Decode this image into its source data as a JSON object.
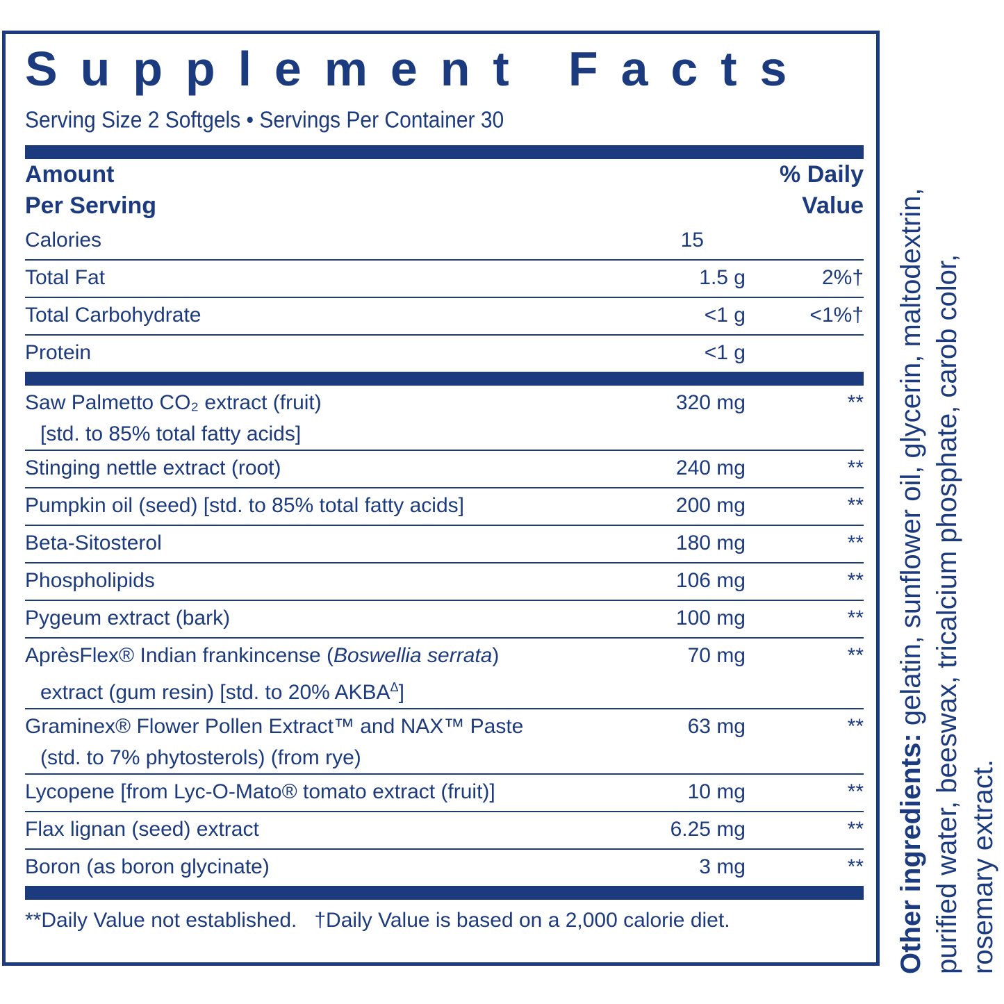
{
  "title": "Supplement Facts",
  "serving": "Serving Size 2 Softgels • Servings Per Container 30",
  "header": {
    "amount": "Amount",
    "per_serving": "Per Serving",
    "daily": "% Daily",
    "value": "Value"
  },
  "sections": [
    {
      "rows": [
        {
          "name": [
            {
              "text": "Calories"
            }
          ],
          "amount": "15"
        },
        {
          "name": [
            {
              "text": "Total Fat"
            }
          ],
          "amount": "1.5 g",
          "dv": "2%†"
        },
        {
          "name": [
            {
              "text": "Total Carbohydrate"
            }
          ],
          "amount": "<1 g",
          "dv": "<1%†"
        },
        {
          "name": [
            {
              "text": "Protein"
            }
          ],
          "amount": "<1 g"
        }
      ]
    },
    {
      "rows": [
        {
          "name": [
            {
              "text": "Saw Palmetto CO₂ extract (fruit)"
            }
          ],
          "detail": [
            {
              "text": "[std. to 85% total fatty acids]"
            }
          ],
          "amount": "320 mg",
          "dv": "**"
        },
        {
          "name": [
            {
              "text": "Stinging nettle extract (root)"
            }
          ],
          "amount": "240 mg",
          "dv": "**"
        },
        {
          "name": [
            {
              "text": "Pumpkin oil (seed) [std. to 85% total fatty acids]"
            }
          ],
          "amount": "200 mg",
          "dv": "**"
        },
        {
          "name": [
            {
              "text": "Beta-Sitosterol"
            }
          ],
          "amount": "180 mg",
          "dv": "**"
        },
        {
          "name": [
            {
              "text": "Phospholipids"
            }
          ],
          "amount": "106 mg",
          "dv": "**"
        },
        {
          "name": [
            {
              "text": "Pygeum extract (bark)"
            }
          ],
          "amount": "100 mg",
          "dv": "**"
        },
        {
          "name": [
            {
              "text": "AprèsFlex® Indian frankincense ("
            },
            {
              "text": "Boswellia serrata",
              "italic": true
            },
            {
              "text": ")"
            }
          ],
          "detail": [
            {
              "text": "extract (gum resin) [std. to 20% AKBA"
            },
            {
              "text": "Δ",
              "sup": true
            },
            {
              "text": "]"
            }
          ],
          "amount": "70 mg",
          "dv": "**"
        },
        {
          "name": [
            {
              "text": "Graminex® Flower Pollen Extract™ and NAX™ Paste"
            }
          ],
          "detail": [
            {
              "text": "(std. to 7% phytosterols) (from rye)"
            }
          ],
          "amount": "63 mg",
          "dv": "**"
        },
        {
          "name": [
            {
              "text": "Lycopene [from Lyc-O-Mato®  tomato extract (fruit)]"
            }
          ],
          "amount": "10 mg",
          "dv": "**"
        },
        {
          "name": [
            {
              "text": "Flax lignan (seed) extract"
            }
          ],
          "amount": "6.25 mg",
          "dv": "**"
        },
        {
          "name": [
            {
              "text": "Boron (as boron glycinate)"
            }
          ],
          "amount": "3 mg",
          "dv": "**"
        }
      ]
    }
  ],
  "footnotes": [
    "**Daily Value not established.",
    "†Daily Value is based on a 2,000 calorie diet."
  ],
  "other_ingredients": {
    "label": "Other ingredients:",
    "lines": [
      " gelatin, sunflower oil, glycerin, maltodextrin,",
      "purified water, beeswax, tricalcium phosphate, carob color,",
      "rosemary extract."
    ]
  }
}
